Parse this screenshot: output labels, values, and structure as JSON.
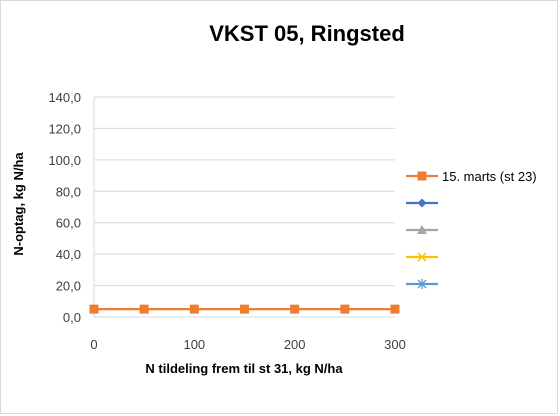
{
  "chart_data": {
    "type": "line",
    "title": "VKST 05, Ringsted",
    "xlabel": "N tildeling frem til st 31, kg N/ha",
    "ylabel": "N-optag, kg N/ha",
    "xlim": [
      0,
      300
    ],
    "ylim": [
      0,
      140
    ],
    "x_ticks": [
      0,
      100,
      200,
      300
    ],
    "x_tick_labels": [
      "0",
      "100",
      "200",
      "300"
    ],
    "y_ticks": [
      0,
      20,
      40,
      60,
      80,
      100,
      120,
      140
    ],
    "y_tick_labels": [
      "0,0",
      "20,0",
      "40,0",
      "60,0",
      "80,0",
      "100,0",
      "120,0",
      "140,0"
    ],
    "grid": "horizontal",
    "legend_position": "right",
    "series": [
      {
        "name": "15. marts (st 23)",
        "color": "#ed7d31",
        "marker": "square",
        "x": [
          0,
          50,
          100,
          150,
          200,
          250,
          300
        ],
        "y": [
          5,
          5,
          5,
          5,
          5,
          5,
          5
        ]
      },
      {
        "name": "",
        "color": "#4472c4",
        "marker": "diamond",
        "x": [],
        "y": []
      },
      {
        "name": "",
        "color": "#a5a5a5",
        "marker": "triangle",
        "x": [],
        "y": []
      },
      {
        "name": "",
        "color": "#ffc000",
        "marker": "x",
        "x": [],
        "y": []
      },
      {
        "name": "",
        "color": "#5b9bd5",
        "marker": "star",
        "x": [],
        "y": []
      }
    ]
  }
}
